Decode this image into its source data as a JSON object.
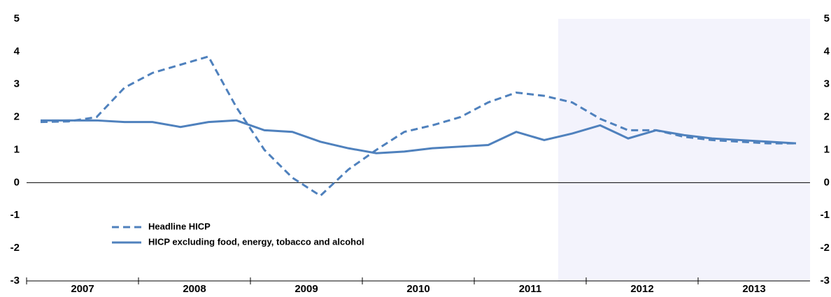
{
  "chart_data": {
    "type": "line",
    "x": [
      2007.125,
      2007.375,
      2007.625,
      2007.875,
      2008.125,
      2008.375,
      2008.625,
      2008.875,
      2009.125,
      2009.375,
      2009.625,
      2009.875,
      2010.125,
      2010.375,
      2010.625,
      2010.875,
      2011.125,
      2011.375,
      2011.625,
      2011.875,
      2012.125,
      2012.375,
      2012.625,
      2012.875,
      2013.125,
      2013.375,
      2013.625,
      2013.875
    ],
    "series": [
      {
        "name": "Headline HICP",
        "color": "#4f81bd",
        "dashed": true,
        "values": [
          1.85,
          1.87,
          2.0,
          2.9,
          3.35,
          3.6,
          3.85,
          2.3,
          1.0,
          0.15,
          -0.4,
          0.4,
          1.0,
          1.55,
          1.75,
          2.0,
          2.45,
          2.75,
          2.65,
          2.45,
          1.95,
          1.6,
          1.6,
          1.4,
          1.3,
          1.25,
          1.2,
          1.2
        ]
      },
      {
        "name": "HICP excluding food, energy, tobacco and alcohol",
        "color": "#4f81bd",
        "dashed": false,
        "values": [
          1.9,
          1.9,
          1.9,
          1.85,
          1.85,
          1.7,
          1.85,
          1.9,
          1.6,
          1.55,
          1.25,
          1.05,
          0.9,
          0.95,
          1.05,
          1.1,
          1.15,
          1.55,
          1.3,
          1.5,
          1.75,
          1.35,
          1.6,
          1.45,
          1.35,
          1.3,
          1.25,
          1.2
        ]
      }
    ],
    "xlim": [
      2007,
      2014
    ],
    "xticks": [
      {
        "value": 2007.5,
        "label": "2007"
      },
      {
        "value": 2008.5,
        "label": "2008"
      },
      {
        "value": 2009.5,
        "label": "2009"
      },
      {
        "value": 2010.5,
        "label": "2010"
      },
      {
        "value": 2011.5,
        "label": "2011"
      },
      {
        "value": 2012.5,
        "label": "2012"
      },
      {
        "value": 2013.5,
        "label": "2013"
      }
    ],
    "ylim": [
      -3,
      5
    ],
    "yticks": [
      -3,
      -2,
      -1,
      0,
      1,
      2,
      3,
      4,
      5
    ],
    "y2lim": [
      -3,
      5
    ],
    "y2ticks": [
      -3,
      -2,
      -1,
      0,
      1,
      2,
      3,
      4,
      5
    ],
    "shaded_region": [
      2011.75,
      2014
    ],
    "shade_color": "#f3f3fc"
  }
}
